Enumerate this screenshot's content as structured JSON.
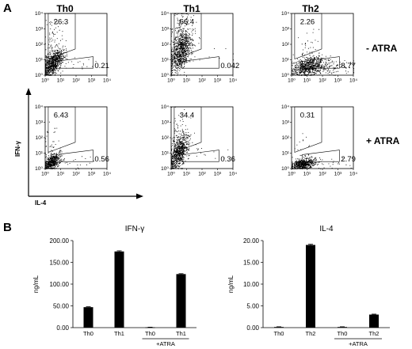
{
  "panel_a": {
    "letter": "A",
    "columns": [
      "Th0",
      "Th1",
      "Th2"
    ],
    "rows": [
      "- ATRA",
      "+ ATRA"
    ],
    "y_axis_label": "IFN-γ",
    "x_axis_label": "IL-4",
    "tick_labels": [
      "10⁰",
      "10¹",
      "10²",
      "10³",
      "10⁴"
    ]
  },
  "panel_b": {
    "letter": "B"
  },
  "chart_data": [
    {
      "type": "scatter",
      "subtype": "flow-cytometry-grid",
      "x_scale": "log",
      "y_scale": "log",
      "xlim": [
        1,
        10000
      ],
      "ylim": [
        1,
        10000
      ],
      "xlabel": "IL-4",
      "ylabel": "IFN-γ",
      "quadrant_gates": [
        {
          "column": "Th0",
          "row": "- ATRA",
          "ifng_gate_pct": "26.3",
          "il4_gate_pct": "0.21"
        },
        {
          "column": "Th1",
          "row": "- ATRA",
          "ifng_gate_pct": "66.4",
          "il4_gate_pct": "0.042"
        },
        {
          "column": "Th2",
          "row": "- ATRA",
          "ifng_gate_pct": "2.26",
          "il4_gate_pct": "8.77"
        },
        {
          "column": "Th0",
          "row": "+ ATRA",
          "ifng_gate_pct": "6.43",
          "il4_gate_pct": "0.56"
        },
        {
          "column": "Th1",
          "row": "+ ATRA",
          "ifng_gate_pct": "34.4",
          "il4_gate_pct": "0.36"
        },
        {
          "column": "Th2",
          "row": "+ ATRA",
          "ifng_gate_pct": "0.31",
          "il4_gate_pct": "2.79"
        }
      ]
    },
    {
      "type": "bar",
      "title": "IFN-γ",
      "ylabel": "ng/mL",
      "ylim": [
        0,
        200
      ],
      "yticks": [
        "0.00",
        "50.00",
        "100.00",
        "150.00",
        "200.00"
      ],
      "categories": [
        "Th0",
        "Th1",
        "Th0",
        "Th1"
      ],
      "group_label": "+ATRA",
      "values": [
        47,
        175,
        0.8,
        123
      ],
      "errors": [
        1,
        1.5,
        0.3,
        1
      ]
    },
    {
      "type": "bar",
      "title": "IL-4",
      "ylabel": "ng/mL",
      "ylim": [
        0,
        20
      ],
      "yticks": [
        "0.00",
        "5.00",
        "10.00",
        "15.00",
        "20.00"
      ],
      "categories": [
        "Th0",
        "Th2",
        "Th0",
        "Th2"
      ],
      "group_label": "+ATRA",
      "values": [
        0.15,
        19,
        0.15,
        3
      ],
      "errors": [
        0.05,
        0.15,
        0.05,
        0.1
      ]
    }
  ]
}
